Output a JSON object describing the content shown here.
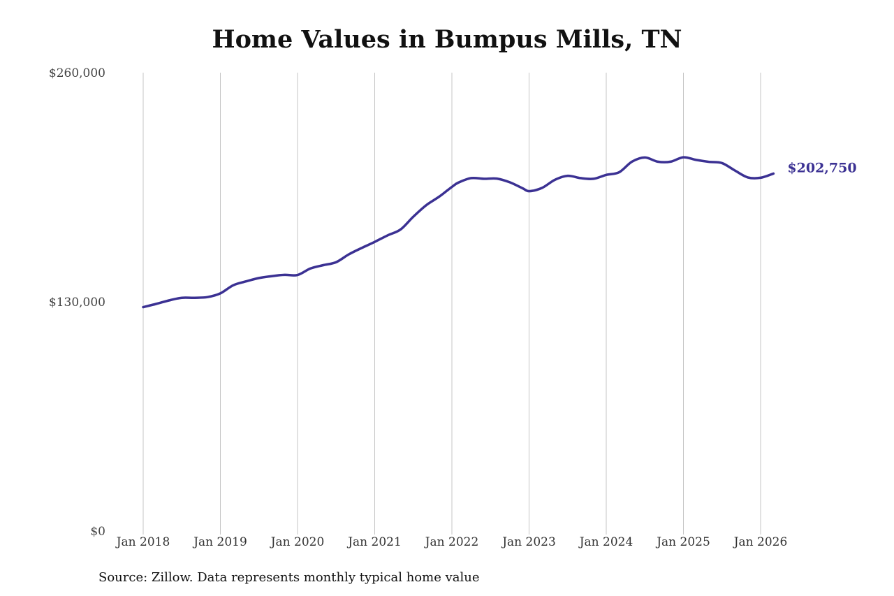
{
  "chart_data": {
    "type": "line",
    "title": "Home Values in Bumpus Mills, TN",
    "xlabel": "",
    "ylabel": "",
    "x_range": [
      "2018-01",
      "2026-03"
    ],
    "ylim": [
      0,
      260000
    ],
    "y_ticks": [
      {
        "value": 0,
        "label": "$0"
      },
      {
        "value": 130000,
        "label": "$130,000"
      },
      {
        "value": 260000,
        "label": "$260,000"
      }
    ],
    "x_ticks": [
      {
        "date": "2018-01",
        "label": "Jan 2018"
      },
      {
        "date": "2019-01",
        "label": "Jan 2019"
      },
      {
        "date": "2020-01",
        "label": "Jan 2020"
      },
      {
        "date": "2021-01",
        "label": "Jan 2021"
      },
      {
        "date": "2022-01",
        "label": "Jan 2022"
      },
      {
        "date": "2023-01",
        "label": "Jan 2023"
      },
      {
        "date": "2024-01",
        "label": "Jan 2024"
      },
      {
        "date": "2025-01",
        "label": "Jan 2025"
      },
      {
        "date": "2026-01",
        "label": "Jan 2026"
      }
    ],
    "grid": {
      "vertical": true,
      "horizontal": false
    },
    "legend": "none",
    "series": [
      {
        "color": "#3b3193",
        "end_label": "$202,750",
        "points": [
          [
            "2018-01",
            127000
          ],
          [
            "2018-03",
            128800
          ],
          [
            "2018-05",
            130800
          ],
          [
            "2018-07",
            132300
          ],
          [
            "2018-09",
            132300
          ],
          [
            "2018-11",
            132700
          ],
          [
            "2019-01",
            134800
          ],
          [
            "2019-03",
            139400
          ],
          [
            "2019-05",
            141600
          ],
          [
            "2019-07",
            143500
          ],
          [
            "2019-09",
            144600
          ],
          [
            "2019-11",
            145300
          ],
          [
            "2020-01",
            145200
          ],
          [
            "2020-03",
            148900
          ],
          [
            "2020-05",
            150800
          ],
          [
            "2020-07",
            152500
          ],
          [
            "2020-09",
            157000
          ],
          [
            "2020-11",
            160600
          ],
          [
            "2021-01",
            164000
          ],
          [
            "2021-03",
            167700
          ],
          [
            "2021-05",
            171000
          ],
          [
            "2021-07",
            178300
          ],
          [
            "2021-09",
            184800
          ],
          [
            "2021-11",
            189600
          ],
          [
            "2022-01",
            195200
          ],
          [
            "2022-02",
            197600
          ],
          [
            "2022-04",
            200200
          ],
          [
            "2022-06",
            199800
          ],
          [
            "2022-08",
            199900
          ],
          [
            "2022-10",
            197800
          ],
          [
            "2022-12",
            194400
          ],
          [
            "2023-01",
            192800
          ],
          [
            "2023-03",
            194600
          ],
          [
            "2023-05",
            199200
          ],
          [
            "2023-07",
            201500
          ],
          [
            "2023-09",
            200200
          ],
          [
            "2023-11",
            199800
          ],
          [
            "2024-01",
            202000
          ],
          [
            "2024-03",
            203500
          ],
          [
            "2024-05",
            209500
          ],
          [
            "2024-07",
            211900
          ],
          [
            "2024-09",
            209500
          ],
          [
            "2024-11",
            209500
          ],
          [
            "2025-01",
            212000
          ],
          [
            "2025-03",
            210500
          ],
          [
            "2025-05",
            209400
          ],
          [
            "2025-07",
            208700
          ],
          [
            "2025-09",
            204500
          ],
          [
            "2025-11",
            200600
          ],
          [
            "2026-01",
            200400
          ],
          [
            "2026-03",
            202750
          ]
        ]
      }
    ]
  },
  "footer": {
    "source": "Source: Zillow. Data represents monthly typical home value"
  }
}
